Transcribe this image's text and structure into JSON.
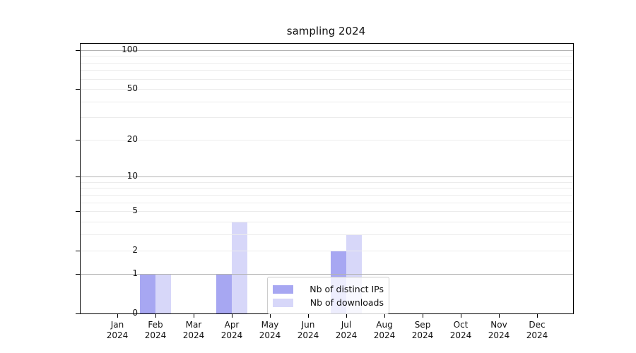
{
  "title": "sampling 2024",
  "chart_data": {
    "type": "bar",
    "title": "sampling 2024",
    "categories": [
      "Jan",
      "Feb",
      "Mar",
      "Apr",
      "May",
      "Jun",
      "Jul",
      "Aug",
      "Sep",
      "Oct",
      "Nov",
      "Dec"
    ],
    "category_year": "2024",
    "series": [
      {
        "name": "Nb of distinct IPs",
        "color": "#a7a7f2",
        "values": [
          0,
          1,
          0,
          1,
          0,
          0,
          2,
          0,
          0,
          0,
          0,
          0
        ]
      },
      {
        "name": "Nb of downloads",
        "color": "#d7d7f9",
        "values": [
          0,
          1,
          0,
          4,
          0,
          0,
          3,
          0,
          0,
          0,
          0,
          0
        ]
      }
    ],
    "xlabel": "",
    "ylabel": "",
    "y_scale": "log10(value+1)",
    "ylim": [
      0,
      112
    ],
    "y_ticks": [
      0,
      1,
      2,
      5,
      10,
      20,
      50,
      100
    ],
    "y_ticks_emphasized": [
      1,
      10,
      100
    ],
    "y_minor_gridlines": [
      3,
      4,
      6,
      7,
      8,
      9,
      30,
      40,
      60,
      70,
      80,
      90
    ],
    "grid": "horizontal",
    "legend_position": "inside-bottom-center",
    "colors": {
      "major_grid": "#b3b3b3",
      "minor_grid": "#ececec",
      "axis_frame": "#000000",
      "background": "#ffffff"
    }
  }
}
